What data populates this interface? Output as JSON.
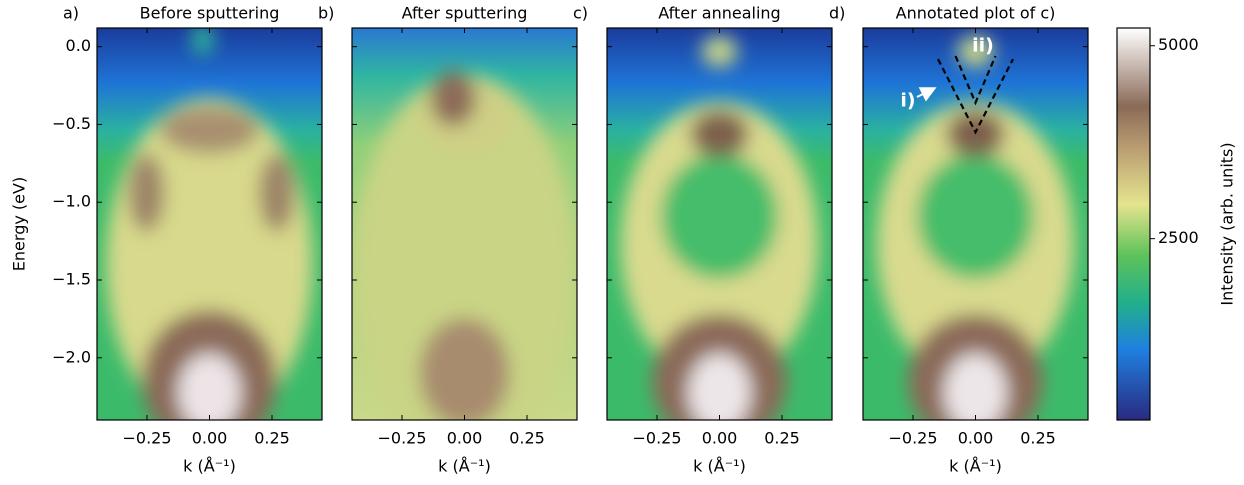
{
  "chart_data": [
    {
      "type": "heatmap",
      "panel_label": "a)",
      "title": "Before sputtering",
      "xlabel": "k (Å⁻¹)",
      "ylabel": "Energy (eV)",
      "xlim": [
        -0.45,
        0.45
      ],
      "ylim": [
        -2.4,
        0.12
      ],
      "xticks": [
        {
          "value": -0.25,
          "label": "−0.25"
        },
        {
          "value": 0,
          "label": "0.00"
        },
        {
          "value": 0.25,
          "label": "0.25"
        }
      ],
      "yticks": [
        {
          "value": 0,
          "label": "0.0"
        },
        {
          "value": -0.5,
          "label": "−0.5"
        },
        {
          "value": -1.0,
          "label": "−1.0"
        },
        {
          "value": -1.5,
          "label": "−1.5"
        },
        {
          "value": -2.0,
          "label": "−2.0"
        }
      ]
    },
    {
      "type": "heatmap",
      "panel_label": "b)",
      "title": "After sputtering",
      "xlabel": "k (Å⁻¹)",
      "xlim": [
        -0.45,
        0.45
      ],
      "ylim": [
        -2.4,
        0.12
      ],
      "xticks": [
        {
          "value": -0.25,
          "label": "−0.25"
        },
        {
          "value": 0,
          "label": "0.00"
        },
        {
          "value": 0.25,
          "label": "0.25"
        }
      ],
      "yticks": [
        0,
        -0.5,
        -1.0,
        -1.5,
        -2.0
      ]
    },
    {
      "type": "heatmap",
      "panel_label": "c)",
      "title": "After annealing",
      "xlabel": "k (Å⁻¹)",
      "xlim": [
        -0.45,
        0.45
      ],
      "ylim": [
        -2.4,
        0.12
      ],
      "xticks": [
        {
          "value": -0.25,
          "label": "−0.25"
        },
        {
          "value": 0,
          "label": "0.00"
        },
        {
          "value": 0.25,
          "label": "0.25"
        }
      ],
      "yticks": [
        0,
        -0.5,
        -1.0,
        -1.5,
        -2.0
      ]
    },
    {
      "type": "heatmap",
      "panel_label": "d)",
      "title": "Annotated plot of c)",
      "xlabel": "k (Å⁻¹)",
      "xlim": [
        -0.45,
        0.45
      ],
      "ylim": [
        -2.4,
        0.12
      ],
      "xticks": [
        {
          "value": -0.25,
          "label": "−0.25"
        },
        {
          "value": 0,
          "label": "0.00"
        },
        {
          "value": 0.25,
          "label": "0.25"
        }
      ],
      "yticks": [
        0,
        -0.5,
        -1.0,
        -1.5,
        -2.0
      ],
      "annotations": [
        "i)",
        "ii)"
      ]
    }
  ],
  "colorbar": {
    "label": "Intensity (arb. units)",
    "lim": [
      150,
      5230
    ],
    "ticks": [
      2500,
      5000
    ]
  }
}
